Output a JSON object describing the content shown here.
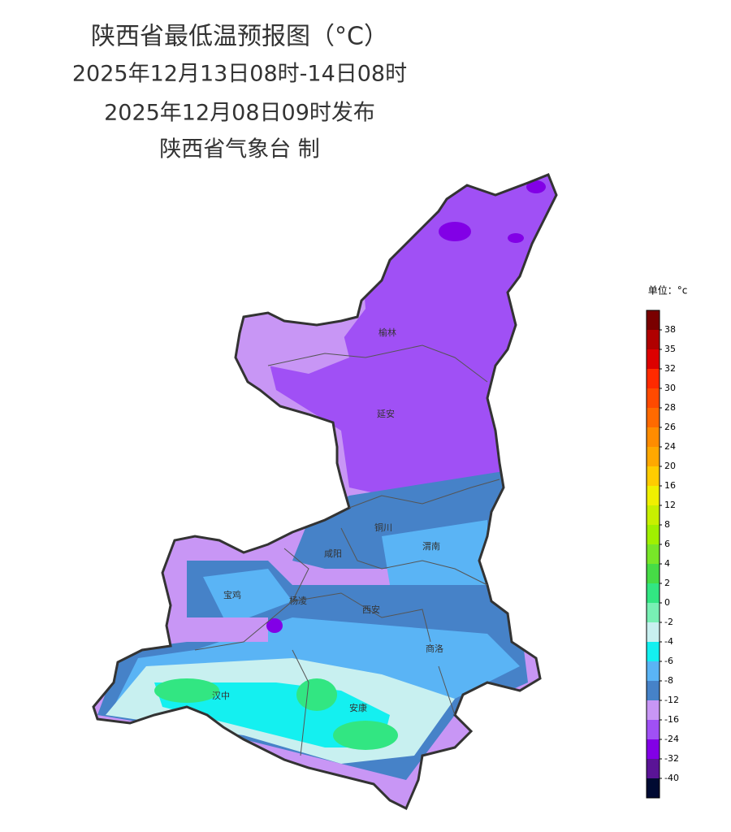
{
  "header": {
    "title": "陕西省最低温预报图（°C）",
    "valid": "2025年12月13日08时-14日08时",
    "issued": "2025年12月08日09时发布",
    "agency": "陕西省气象台 制"
  },
  "cities": [
    "榆林",
    "延安",
    "铜川",
    "渭南",
    "咸阳",
    "宝鸡",
    "杨凌",
    "西安",
    "商洛",
    "汉中",
    "安康"
  ],
  "legend": {
    "unit": "单位：°c",
    "ticks": [
      38,
      35,
      32,
      30,
      28,
      26,
      24,
      20,
      16,
      12,
      8,
      6,
      4,
      2,
      0,
      -2,
      -4,
      -6,
      -8,
      -12,
      -16,
      -24,
      -32,
      -40
    ],
    "colors": [
      "#7a0000",
      "#b00000",
      "#dc0000",
      "#ff2a00",
      "#ff4a00",
      "#ff6a00",
      "#ff8c00",
      "#ffa800",
      "#ffcc00",
      "#f0f000",
      "#c8f000",
      "#a0f000",
      "#78e628",
      "#46dc46",
      "#32e682",
      "#78f0b4",
      "#c8f0f0",
      "#14f0f0",
      "#5ab4f5",
      "#4682c8",
      "#c896f5",
      "#a050f5",
      "#8200e6",
      "#5a1496",
      "#000a32"
    ]
  }
}
